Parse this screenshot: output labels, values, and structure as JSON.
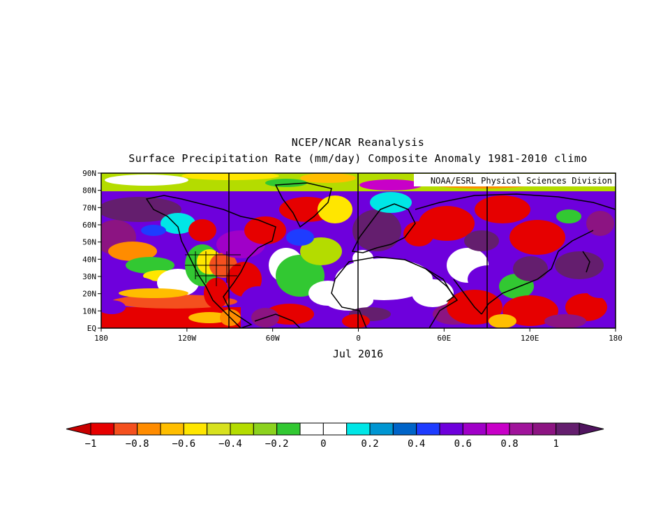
{
  "figure": {
    "title_line1": "NCEP/NCAR Reanalysis",
    "title_line2": "Surface Precipitation Rate (mm/day) Composite Anomaly 1981-2010 climo",
    "credit": "NOAA/ESRL Physical Sciences Division",
    "period": "Jul 2016"
  },
  "axes": {
    "lat_labels": [
      "90N",
      "80N",
      "70N",
      "60N",
      "50N",
      "40N",
      "30N",
      "20N",
      "10N",
      "EQ"
    ],
    "lon_labels": [
      "180",
      "120W",
      "60W",
      "0",
      "60E",
      "120E",
      "180"
    ]
  },
  "colorbar": {
    "labels": [
      "-1",
      "-0.8",
      "-0.6",
      "-0.4",
      "-0.2",
      "0",
      "0.2",
      "0.4",
      "0.6",
      "0.8",
      "1"
    ],
    "colors": [
      "#e60000",
      "#f4501e",
      "#ff8c00",
      "#ffbe00",
      "#ffe600",
      "#d7e11e",
      "#b4dc00",
      "#8cd21e",
      "#32c832",
      "#ffffff",
      "#ffffff",
      "#00e6e6",
      "#0096d2",
      "#0064c8",
      "#1e3cff",
      "#6e00dc",
      "#a000c8",
      "#c800c8",
      "#a0149b",
      "#8c1482",
      "#641e6e"
    ],
    "under_color": "#c80000",
    "over_color": "#50145f"
  }
}
